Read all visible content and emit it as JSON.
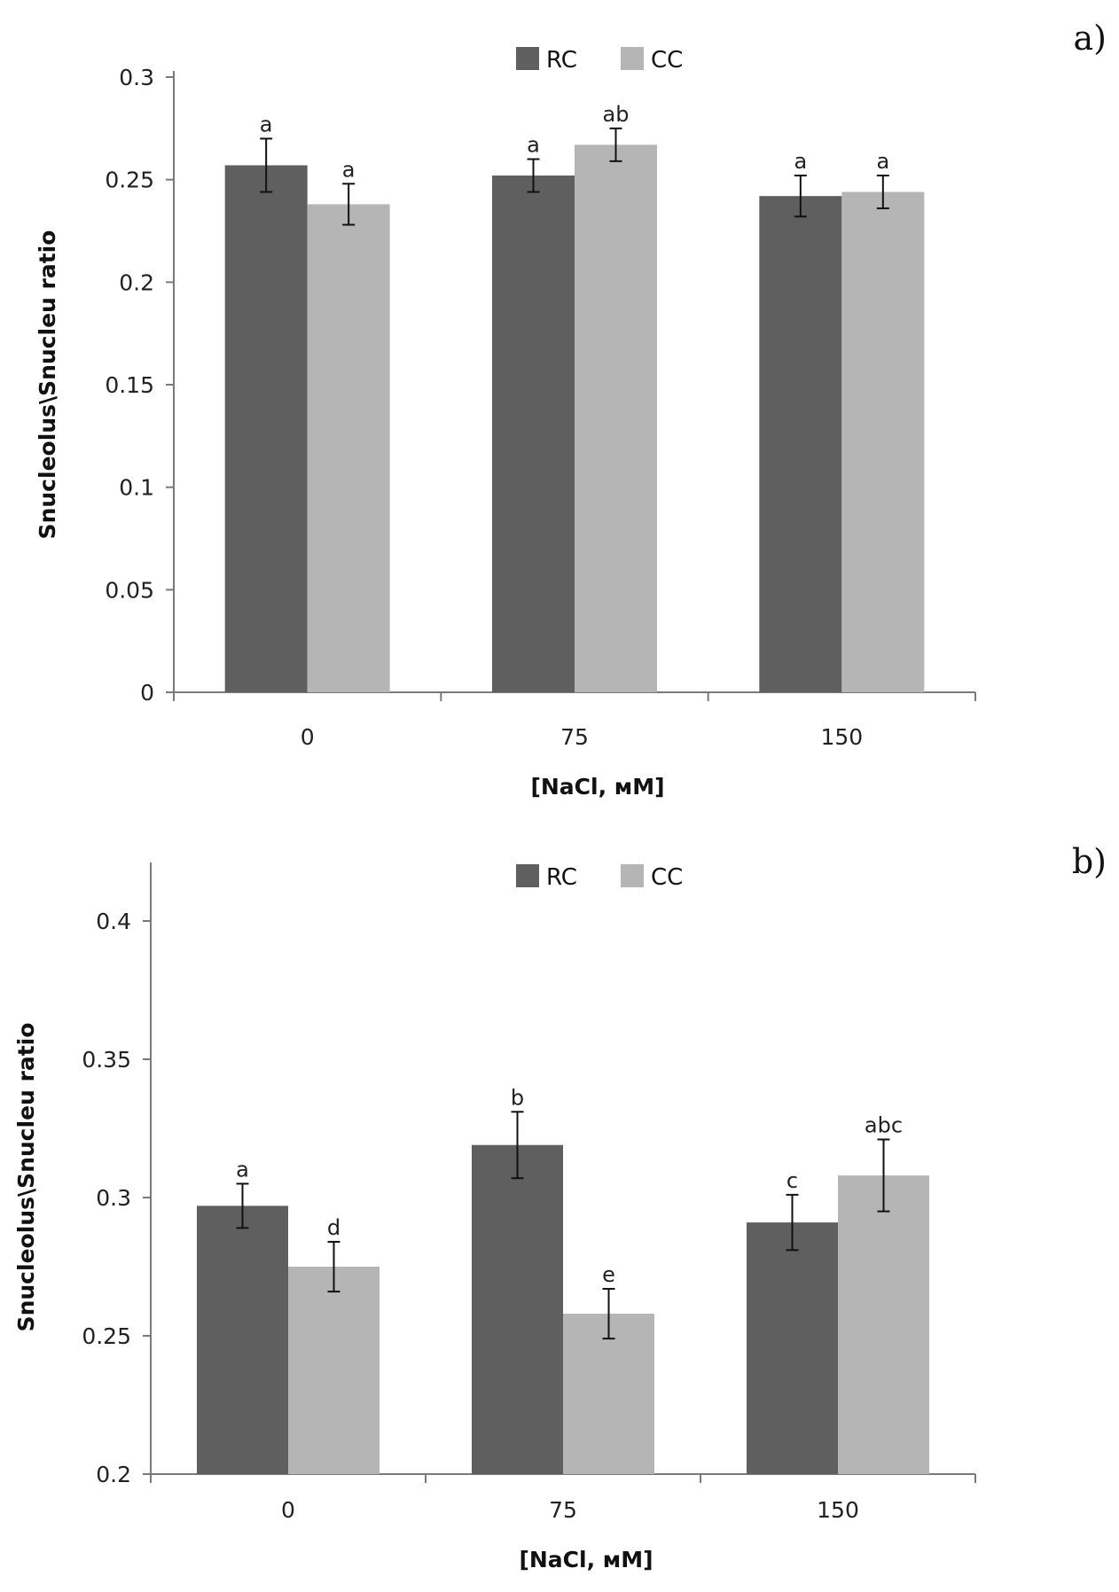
{
  "chart_data": [
    {
      "type": "bar",
      "panel_label": "a)",
      "categories": [
        "0",
        "75",
        "150"
      ],
      "series": [
        {
          "name": "RC",
          "values": [
            0.257,
            0.252,
            0.242
          ],
          "errors": [
            0.013,
            0.008,
            0.01
          ],
          "labels": [
            "a",
            "a",
            "a"
          ]
        },
        {
          "name": "CC",
          "values": [
            0.238,
            0.267,
            0.244
          ],
          "errors": [
            0.01,
            0.008,
            0.008
          ],
          "labels": [
            "a",
            "ab",
            "a"
          ]
        }
      ],
      "xlabel": "[NaCl, мM]",
      "ylabel": "Snucleolus\\Snucleu ratio",
      "ylim": [
        0,
        0.3
      ],
      "yticks": [
        "0",
        "0.05",
        "0.1",
        "0.15",
        "0.2",
        "0.25",
        "0.3"
      ],
      "legend": "top-center",
      "grid": false
    },
    {
      "type": "bar",
      "panel_label": "b)",
      "categories": [
        "0",
        "75",
        "150"
      ],
      "series": [
        {
          "name": "RC",
          "values": [
            0.297,
            0.319,
            0.291
          ],
          "errors": [
            0.008,
            0.012,
            0.01
          ],
          "labels": [
            "a",
            "b",
            "c"
          ]
        },
        {
          "name": "CC",
          "values": [
            0.275,
            0.258,
            0.308
          ],
          "errors": [
            0.009,
            0.009,
            0.013
          ],
          "labels": [
            "d",
            "e",
            "abc"
          ]
        }
      ],
      "xlabel": "[NaCl, мM]",
      "ylabel": "Snucleolus\\Snucleu ratio",
      "ylim": [
        0.2,
        0.42
      ],
      "yticks": [
        "0.2",
        "0.25",
        "0.3",
        "0.35",
        "0.4"
      ],
      "legend": "top-center",
      "grid": false
    }
  ],
  "colors": {
    "RC": "#5f5f5f",
    "CC": "#b5b5b5"
  }
}
